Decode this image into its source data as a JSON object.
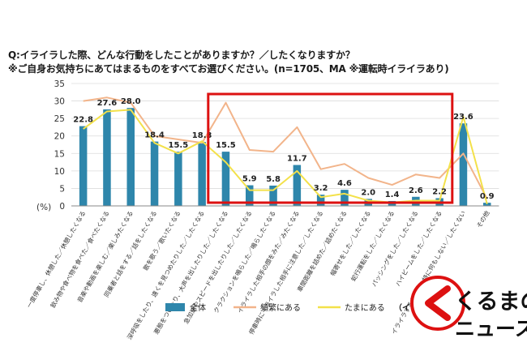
{
  "question": "Q:イライラした際、どんな行動をしたことがありますか？／したくなりますか？",
  "instruction": "※ご自身お気持ちにあてはまるものをすべてお選びください。(n=1705、MA ※運転時イライラあり)",
  "watermark": {
    "line1": "くるまの",
    "line2": "ニュース"
  },
  "colors": {
    "bar": "#2E86AB",
    "hinpan": "#F2B48A",
    "tamani": "#F3E14A",
    "highlight": "#DD1111"
  },
  "chart_data": {
    "type": "bar",
    "title": "",
    "ylabel": "(%)",
    "xlabel": "",
    "ylim": [
      0,
      35
    ],
    "yticks": [
      0,
      5,
      10,
      15,
      20,
      25,
      30,
      35
    ],
    "y_unit_label": "(%)",
    "categories": [
      "一度停車し、休憩した／休憩したくなる",
      "飲み物や食べ物を食べた／食べたくなる",
      "音楽や動画を楽しむ／楽しみたくなる",
      "同乗者と話をする／話をしたくなる",
      "歌を歌う／歌いたくなる",
      "深呼吸をしたり、遠くを見つめたりした／したくなる",
      "悪態をついたり、大声を出したりした／したくなる",
      "急加速やスピードを出したりした／したくなる",
      "クラクションを鳴らした／鳴らしたくなる",
      "イライラした相手の顔をみた／みたくなる",
      "停車時にイライラした相手に注意した／したくなる",
      "車間距離を詰めた／詰めたくなる",
      "幅寄せをした／したくなる",
      "蛇行運転をした／したくなる",
      "パッシングをした／したくなる",
      "ハイビームをした／したくなる",
      "イライラするだけで、特に何もしない／したくない",
      "その他"
    ],
    "series": [
      {
        "name": "全体",
        "kind": "bar",
        "values": [
          22.8,
          27.6,
          28.0,
          18.4,
          15.5,
          18.3,
          15.5,
          5.9,
          5.8,
          11.7,
          3.2,
          4.6,
          2.0,
          1.4,
          2.6,
          2.2,
          23.6,
          0.9
        ]
      },
      {
        "name": "頻繁にある",
        "kind": "line",
        "values": [
          30.0,
          31.0,
          29.5,
          20.0,
          19.0,
          18.0,
          29.5,
          16.0,
          15.5,
          22.5,
          10.5,
          12.0,
          8.0,
          6.0,
          9.0,
          8.0,
          15.0,
          2.0
        ]
      },
      {
        "name": "たまにある",
        "kind": "line",
        "values": [
          22.0,
          27.0,
          27.5,
          18.0,
          15.0,
          18.5,
          12.5,
          4.5,
          4.5,
          10.0,
          2.5,
          3.5,
          1.5,
          1.0,
          1.5,
          1.5,
          25.5,
          0.5
        ]
      }
    ],
    "legend": {
      "position": "bottom",
      "items": [
        "全体",
        "頻繁にある",
        "たまにある"
      ],
      "note": "（イライラ頻度）"
    },
    "highlight": {
      "label": "red box",
      "from_category": 6,
      "to_category": 15
    },
    "data_labels": [
      "22.8",
      "27.6",
      "28.0",
      "18.4",
      "15.5",
      "18.3",
      "15.5",
      "5.9",
      "5.8",
      "11.7",
      "3.2",
      "4.6",
      "2.0",
      "1.4",
      "2.6",
      "2.2",
      "23.6",
      "0.9"
    ],
    "grid": true
  }
}
